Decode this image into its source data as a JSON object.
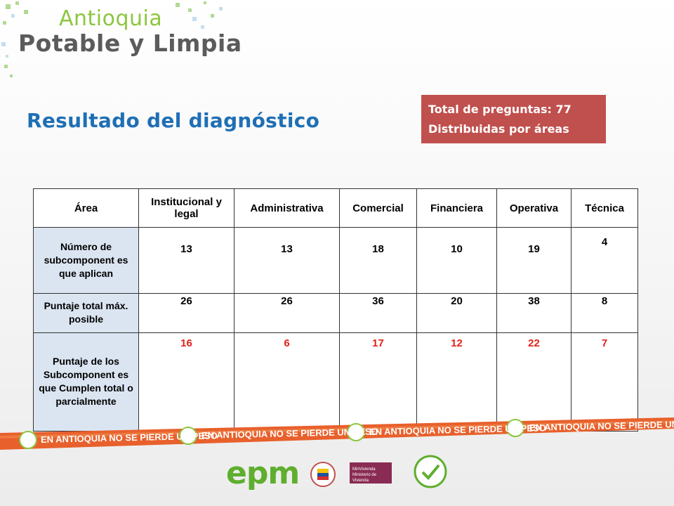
{
  "brand": {
    "line1": "Antioquia",
    "line2": "Potable y Limpia"
  },
  "title": "Resultado del diagnóstico",
  "summary": {
    "line1": "Total de preguntas: 77",
    "line2": "Distribuidas por áreas"
  },
  "table": {
    "headers": [
      "Área",
      "Institucional y legal",
      "Administrativa",
      "Comercial",
      "Financiera",
      "Operativa",
      "Técnica"
    ],
    "rows": [
      {
        "label": "Número de subcomponent es que aplican",
        "values": [
          "13",
          "13",
          "18",
          "10",
          "19",
          "4"
        ]
      },
      {
        "label": "Puntaje total máx. posible",
        "values": [
          "26",
          "26",
          "36",
          "20",
          "38",
          "8"
        ]
      },
      {
        "label": "Puntaje de los Subcomponent es que Cumplen total o parcialmente",
        "values": [
          "16",
          "6",
          "17",
          "12",
          "22",
          "7"
        ]
      }
    ]
  },
  "slogan": "EN ANTIOQUIA NO SE PIERDE UN PESO",
  "logos": {
    "epm": "epm",
    "ministry": "MinVivienda",
    "ministry_sub": "Ministerio de Vivienda"
  },
  "colors": {
    "title": "#1f6fb5",
    "summary_bg": "#c0504d",
    "highlight": "#e32119",
    "band": "#e8602c",
    "brand_green": "#8cc63f"
  }
}
